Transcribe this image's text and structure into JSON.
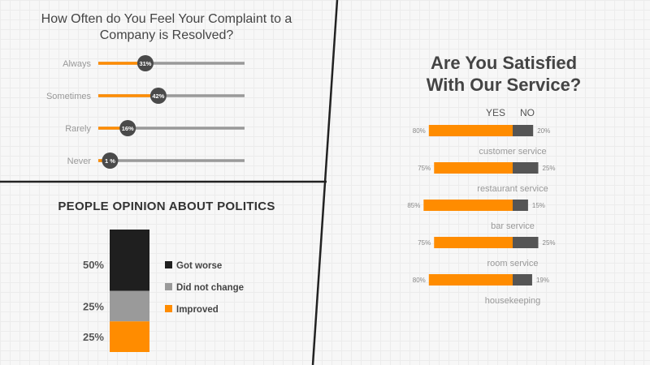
{
  "chart_data": [
    {
      "type": "bar",
      "title": "How Often do You Feel Your Complaint to a Company is Resolved?",
      "categories": [
        "Always",
        "Sometimes",
        "Rarely",
        "Never"
      ],
      "values": [
        31,
        42,
        16,
        1
      ],
      "labels": [
        "31%",
        "42%",
        "16%",
        "1 %"
      ],
      "ylim": [
        0,
        100
      ]
    },
    {
      "type": "bar",
      "title": "PEOPLE OPINION ABOUT POLITICS",
      "stacked": true,
      "series": [
        {
          "name": "Got worse",
          "value": 50,
          "label": "50%",
          "color": "#1f1f1f"
        },
        {
          "name": "Did not change",
          "value": 25,
          "label": "25%",
          "color": "#9a9a9a"
        },
        {
          "name": "Improved",
          "value": 25,
          "label": "25%",
          "color": "#ff8c00"
        }
      ]
    },
    {
      "type": "bar",
      "title": "Are You Satisfied With Our Service?",
      "stacked": true,
      "legend": [
        "YES",
        "NO"
      ],
      "categories": [
        "customer service",
        "restaurant service",
        "bar service",
        "room service",
        "housekeeping"
      ],
      "series": [
        {
          "name": "YES",
          "values": [
            80,
            75,
            85,
            75,
            80
          ],
          "labels": [
            "80%",
            "75%",
            "85%",
            "75%",
            "80%"
          ],
          "color": "#ff8c00"
        },
        {
          "name": "NO",
          "values": [
            20,
            25,
            15,
            25,
            19
          ],
          "labels": [
            "20%",
            "25%",
            "15%",
            "25%",
            "19%"
          ],
          "color": "#555555"
        }
      ]
    }
  ],
  "colors": {
    "accent": "#ff8c00",
    "dark": "#4a4a4a",
    "track": "#999999"
  }
}
